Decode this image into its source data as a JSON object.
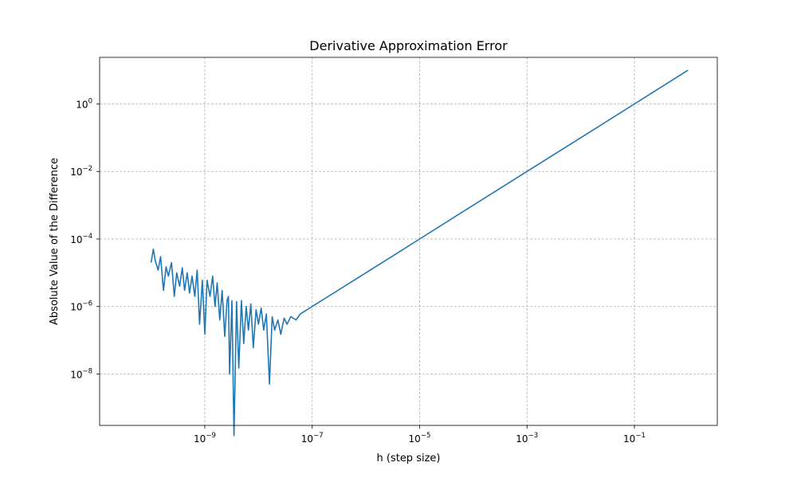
{
  "chart_data": {
    "type": "line",
    "title": "Derivative Approximation Error",
    "xlabel": "h (step size)",
    "ylabel": "Absolute Value of the Difference",
    "x_scale": "log",
    "y_scale": "log",
    "xlim": [
      1.1e-11,
      3.5
    ],
    "ylim": [
      3e-10,
      24
    ],
    "grid": true,
    "x_ticks": [
      {
        "value": 1e-09,
        "base": "10",
        "exp": "−9"
      },
      {
        "value": 1e-07,
        "base": "10",
        "exp": "−7"
      },
      {
        "value": 1e-05,
        "base": "10",
        "exp": "−5"
      },
      {
        "value": 0.001,
        "base": "10",
        "exp": "−3"
      },
      {
        "value": 0.1,
        "base": "10",
        "exp": "−1"
      }
    ],
    "y_ticks": [
      {
        "value": 1e-08,
        "base": "10",
        "exp": "−8"
      },
      {
        "value": 1e-06,
        "base": "10",
        "exp": "−6"
      },
      {
        "value": 0.0001,
        "base": "10",
        "exp": "−4"
      },
      {
        "value": 0.01,
        "base": "10",
        "exp": "−2"
      },
      {
        "value": 1,
        "base": "10",
        "exp": "0"
      }
    ],
    "series": [
      {
        "color": "#1f77b4",
        "x": [
          1e-10,
          1.1e-10,
          1.2e-10,
          1.35e-10,
          1.5e-10,
          1.7e-10,
          1.9e-10,
          2.1e-10,
          2.4e-10,
          2.7e-10,
          3e-10,
          3.4e-10,
          3.8e-10,
          4.2e-10,
          4.7e-10,
          5.2e-10,
          5.8e-10,
          6.5e-10,
          7.2e-10,
          8e-10,
          9e-10,
          1e-09,
          1.1e-09,
          1.25e-09,
          1.4e-09,
          1.55e-09,
          1.7e-09,
          1.9e-09,
          2.1e-09,
          2.35e-09,
          2.6e-09,
          2.75e-09,
          2.9e-09,
          3.2e-09,
          3.5e-09,
          3.9e-09,
          4.3e-09,
          4.8e-09,
          5.3e-09,
          5.9e-09,
          6.5e-09,
          7.2e-09,
          8e-09,
          9e-09,
          1e-08,
          1.12e-08,
          1.25e-08,
          1.4e-08,
          1.6e-08,
          1.8e-08,
          2e-08,
          2.3e-08,
          2.6e-08,
          3e-08,
          3.4e-08,
          4e-08,
          5e-08,
          6e-08,
          8e-08,
          1e-07,
          2e-07,
          1e-06,
          1e-05,
          0.0001,
          0.001,
          0.01,
          0.1,
          1
        ],
        "y": [
          2e-05,
          5e-05,
          2.2e-05,
          1.2e-05,
          3e-05,
          3e-06,
          1.5e-05,
          8e-06,
          2e-05,
          2e-06,
          1e-05,
          4e-06,
          1.4e-05,
          3e-06,
          1e-05,
          2.5e-06,
          8e-06,
          2e-06,
          1.2e-05,
          3e-07,
          6e-06,
          1.5e-07,
          6e-06,
          2e-06,
          8e-06,
          1e-06,
          5e-06,
          4e-07,
          3e-06,
          1.3e-07,
          1.5e-06,
          2e-06,
          1e-08,
          1.5e-06,
          1.5e-10,
          1.4e-06,
          1.5e-08,
          1.5e-06,
          8e-08,
          1e-06,
          2e-07,
          1.2e-06,
          6e-08,
          8e-07,
          3e-07,
          9e-07,
          2e-07,
          6e-07,
          5e-09,
          5e-07,
          2e-07,
          4e-07,
          1.5e-07,
          4.5e-07,
          3e-07,
          5e-07,
          4e-07,
          6e-07,
          8e-07,
          1e-06,
          2e-06,
          1e-05,
          0.0001,
          0.001,
          0.01,
          0.1,
          1,
          10
        ]
      }
    ]
  }
}
